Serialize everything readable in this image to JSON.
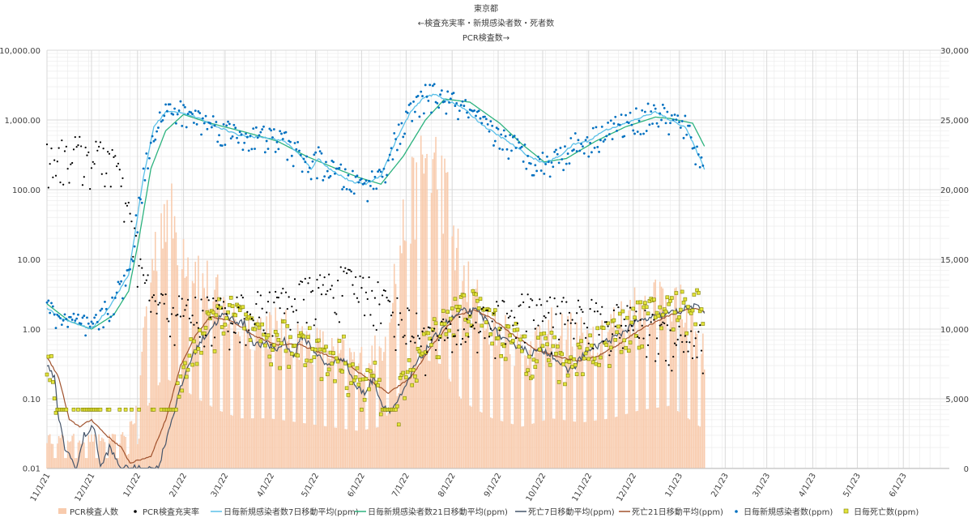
{
  "chart_data": {
    "type": "combo",
    "title_lines": [
      "東京都",
      "←検査充実率・新規感染者数・死者数",
      "PCR検査数→"
    ],
    "y_left": {
      "scale": "log",
      "range": [
        0.01,
        10000
      ],
      "ticks": [
        {
          "value": 10000,
          "label": "10,000.00"
        },
        {
          "value": 1000,
          "label": "1,000.00"
        },
        {
          "value": 100,
          "label": "100.00"
        },
        {
          "value": 10,
          "label": "10.00"
        },
        {
          "value": 1,
          "label": "1.00"
        },
        {
          "value": 0.1,
          "label": "0.10"
        },
        {
          "value": 0.01,
          "label": "0.01"
        }
      ]
    },
    "y_right": {
      "scale": "linear",
      "range": [
        0,
        30000
      ],
      "ticks": [
        {
          "value": 30000,
          "label": "30,000"
        },
        {
          "value": 25000,
          "label": "25,000"
        },
        {
          "value": 20000,
          "label": "20,000"
        },
        {
          "value": 15000,
          "label": "15,000"
        },
        {
          "value": 10000,
          "label": "10,000"
        },
        {
          "value": 5000,
          "label": "5,000"
        },
        {
          "value": 0,
          "label": "0"
        }
      ]
    },
    "x_ticks": [
      "11/1/21",
      "12/1/21",
      "1/1/22",
      "2/1/22",
      "3/1/22",
      "4/1/22",
      "5/1/22",
      "6/1/22",
      "7/1/22",
      "8/1/22",
      "9/1/22",
      "10/1/22",
      "11/1/22",
      "12/1/22",
      "1/1/23",
      "2/1/23",
      "3/1/23",
      "4/1/23",
      "5/1/23",
      "6/1/23"
    ],
    "colors": {
      "pcr": "#f8cbad",
      "positivity": "#000000",
      "cases7": "#5bc0e8",
      "cases21": "#2db37f",
      "deaths7": "#44546a",
      "deaths21": "#a0522d",
      "cases_daily": "#0070c0",
      "deaths_daily_fill": "#e2e33c",
      "deaths_daily_edge": "#808000"
    },
    "legend": [
      {
        "key": "pcr",
        "label": "PCR検査人数",
        "kind": "bar"
      },
      {
        "key": "positivity",
        "label": "PCR検査充実率",
        "kind": "dot"
      },
      {
        "key": "cases7",
        "label": "日毎新規感染者数7日移動平均(ppm)",
        "kind": "line"
      },
      {
        "key": "cases21",
        "label": "日毎新規感染者数21日移動平均(ppm)",
        "kind": "line"
      },
      {
        "key": "deaths7",
        "label": "死亡7日移動平均(ppm)",
        "kind": "line"
      },
      {
        "key": "deaths21",
        "label": "死亡21日移動平均(ppm)",
        "kind": "line"
      },
      {
        "key": "cases_daily",
        "label": "日毎新規感染者数(ppm)",
        "kind": "dot"
      },
      {
        "key": "deaths_daily",
        "label": "日毎死亡数(ppm)",
        "kind": "square"
      }
    ],
    "series_keyframes": {
      "cases21": [
        [
          0,
          2.3
        ],
        [
          15,
          1.3
        ],
        [
          30,
          1.0
        ],
        [
          45,
          1.6
        ],
        [
          55,
          3.5
        ],
        [
          62,
          20
        ],
        [
          70,
          200
        ],
        [
          80,
          700
        ],
        [
          92,
          1200
        ],
        [
          110,
          900
        ],
        [
          130,
          700
        ],
        [
          155,
          500
        ],
        [
          175,
          300
        ],
        [
          195,
          200
        ],
        [
          210,
          150
        ],
        [
          225,
          120
        ],
        [
          240,
          300
        ],
        [
          255,
          1000
        ],
        [
          268,
          2000
        ],
        [
          285,
          1800
        ],
        [
          305,
          900
        ],
        [
          320,
          450
        ],
        [
          335,
          250
        ],
        [
          350,
          280
        ],
        [
          370,
          500
        ],
        [
          390,
          800
        ],
        [
          410,
          1100
        ],
        [
          420,
          1050
        ],
        [
          435,
          900
        ],
        [
          443,
          420
        ]
      ],
      "cases7": [
        [
          0,
          2.0
        ],
        [
          10,
          1.4
        ],
        [
          20,
          1.2
        ],
        [
          30,
          1.0
        ],
        [
          40,
          1.8
        ],
        [
          50,
          4
        ],
        [
          55,
          6
        ],
        [
          60,
          30
        ],
        [
          65,
          150
        ],
        [
          72,
          800
        ],
        [
          80,
          1300
        ],
        [
          90,
          1300
        ],
        [
          100,
          1100
        ],
        [
          115,
          800
        ],
        [
          130,
          600
        ],
        [
          150,
          550
        ],
        [
          160,
          500
        ],
        [
          170,
          320
        ],
        [
          178,
          200
        ],
        [
          183,
          280
        ],
        [
          190,
          200
        ],
        [
          205,
          130
        ],
        [
          215,
          120
        ],
        [
          225,
          160
        ],
        [
          235,
          500
        ],
        [
          245,
          1300
        ],
        [
          255,
          2200
        ],
        [
          262,
          2300
        ],
        [
          280,
          1500
        ],
        [
          295,
          800
        ],
        [
          310,
          500
        ],
        [
          325,
          300
        ],
        [
          335,
          240
        ],
        [
          345,
          300
        ],
        [
          355,
          450
        ],
        [
          365,
          500
        ],
        [
          375,
          700
        ],
        [
          390,
          900
        ],
        [
          410,
          1300
        ],
        [
          418,
          1050
        ],
        [
          430,
          800
        ],
        [
          438,
          350
        ],
        [
          443,
          200
        ]
      ],
      "deaths21": [
        [
          0,
          0.4
        ],
        [
          8,
          0.2
        ],
        [
          15,
          0.05
        ],
        [
          22,
          0.04
        ],
        [
          30,
          0.05
        ],
        [
          40,
          0.03
        ],
        [
          50,
          0.02
        ],
        [
          56,
          0.012
        ],
        [
          70,
          0.015
        ],
        [
          80,
          0.05
        ],
        [
          90,
          0.3
        ],
        [
          100,
          0.8
        ],
        [
          110,
          1.5
        ],
        [
          125,
          1.3
        ],
        [
          140,
          0.8
        ],
        [
          155,
          0.6
        ],
        [
          170,
          0.6
        ],
        [
          185,
          0.45
        ],
        [
          200,
          0.35
        ],
        [
          215,
          0.2
        ],
        [
          230,
          0.12
        ],
        [
          245,
          0.2
        ],
        [
          260,
          0.6
        ],
        [
          275,
          1.5
        ],
        [
          288,
          1.9
        ],
        [
          300,
          1.4
        ],
        [
          315,
          0.8
        ],
        [
          330,
          0.5
        ],
        [
          345,
          0.4
        ],
        [
          358,
          0.35
        ],
        [
          370,
          0.4
        ],
        [
          385,
          0.6
        ],
        [
          400,
          1.0
        ],
        [
          420,
          1.6
        ],
        [
          435,
          2.0
        ],
        [
          443,
          1.8
        ]
      ],
      "deaths7": [
        [
          0,
          0.3
        ],
        [
          5,
          0.2
        ],
        [
          8,
          0.05
        ],
        [
          12,
          0.02
        ],
        [
          20,
          0.01
        ],
        [
          25,
          0.03
        ],
        [
          32,
          0.04
        ],
        [
          36,
          0.01
        ],
        [
          42,
          0.02
        ],
        [
          50,
          0.01
        ],
        [
          75,
          0.01
        ],
        [
          80,
          0.025
        ],
        [
          88,
          0.1
        ],
        [
          95,
          0.3
        ],
        [
          102,
          0.6
        ],
        [
          110,
          1.0
        ],
        [
          118,
          1.6
        ],
        [
          125,
          1.4
        ],
        [
          133,
          1.2
        ],
        [
          140,
          0.6
        ],
        [
          148,
          0.6
        ],
        [
          155,
          0.5
        ],
        [
          160,
          0.7
        ],
        [
          166,
          0.4
        ],
        [
          172,
          0.8
        ],
        [
          180,
          0.5
        ],
        [
          188,
          0.3
        ],
        [
          195,
          0.35
        ],
        [
          200,
          0.4
        ],
        [
          208,
          0.15
        ],
        [
          214,
          0.12
        ],
        [
          220,
          0.2
        ],
        [
          226,
          0.08
        ],
        [
          232,
          0.07
        ],
        [
          240,
          0.12
        ],
        [
          248,
          0.3
        ],
        [
          258,
          0.6
        ],
        [
          268,
          1.2
        ],
        [
          280,
          1.8
        ],
        [
          290,
          1.8
        ],
        [
          298,
          1.2
        ],
        [
          305,
          0.8
        ],
        [
          312,
          0.6
        ],
        [
          318,
          0.6
        ],
        [
          325,
          0.45
        ],
        [
          333,
          0.5
        ],
        [
          340,
          0.45
        ],
        [
          350,
          0.25
        ],
        [
          356,
          0.3
        ],
        [
          362,
          0.45
        ],
        [
          372,
          0.6
        ],
        [
          385,
          0.8
        ],
        [
          395,
          1.2
        ],
        [
          405,
          1.4
        ],
        [
          415,
          1.6
        ],
        [
          425,
          1.8
        ],
        [
          435,
          2.1
        ],
        [
          443,
          1.9
        ]
      ],
      "pcr_envelope": [
        [
          0,
          2500
        ],
        [
          50,
          2500
        ],
        [
          60,
          4500
        ],
        [
          68,
          15000
        ],
        [
          78,
          22000
        ],
        [
          88,
          20000
        ],
        [
          100,
          17000
        ],
        [
          115,
          14000
        ],
        [
          130,
          12000
        ],
        [
          150,
          12000
        ],
        [
          170,
          11000
        ],
        [
          190,
          10000
        ],
        [
          210,
          9000
        ],
        [
          225,
          10000
        ],
        [
          240,
          20000
        ],
        [
          255,
          26000
        ],
        [
          265,
          25000
        ],
        [
          280,
          16000
        ],
        [
          300,
          12000
        ],
        [
          320,
          10000
        ],
        [
          340,
          12000
        ],
        [
          360,
          11000
        ],
        [
          380,
          12000
        ],
        [
          400,
          14000
        ],
        [
          420,
          15000
        ],
        [
          440,
          10000
        ]
      ],
      "positivity_envelope": [
        [
          0,
          250
        ],
        [
          20,
          300
        ],
        [
          35,
          250
        ],
        [
          45,
          250
        ],
        [
          52,
          60
        ],
        [
          58,
          20
        ],
        [
          64,
          5
        ],
        [
          72,
          2
        ],
        [
          90,
          1.5
        ],
        [
          120,
          1.5
        ],
        [
          150,
          1.8
        ],
        [
          180,
          3
        ],
        [
          200,
          4
        ],
        [
          220,
          3
        ],
        [
          240,
          1.2
        ],
        [
          260,
          0.6
        ],
        [
          280,
          0.9
        ],
        [
          300,
          1.2
        ],
        [
          320,
          1.6
        ],
        [
          340,
          1.5
        ],
        [
          360,
          1.4
        ],
        [
          380,
          1.2
        ],
        [
          400,
          1.0
        ],
        [
          420,
          0.7
        ],
        [
          440,
          0.6
        ]
      ]
    }
  }
}
